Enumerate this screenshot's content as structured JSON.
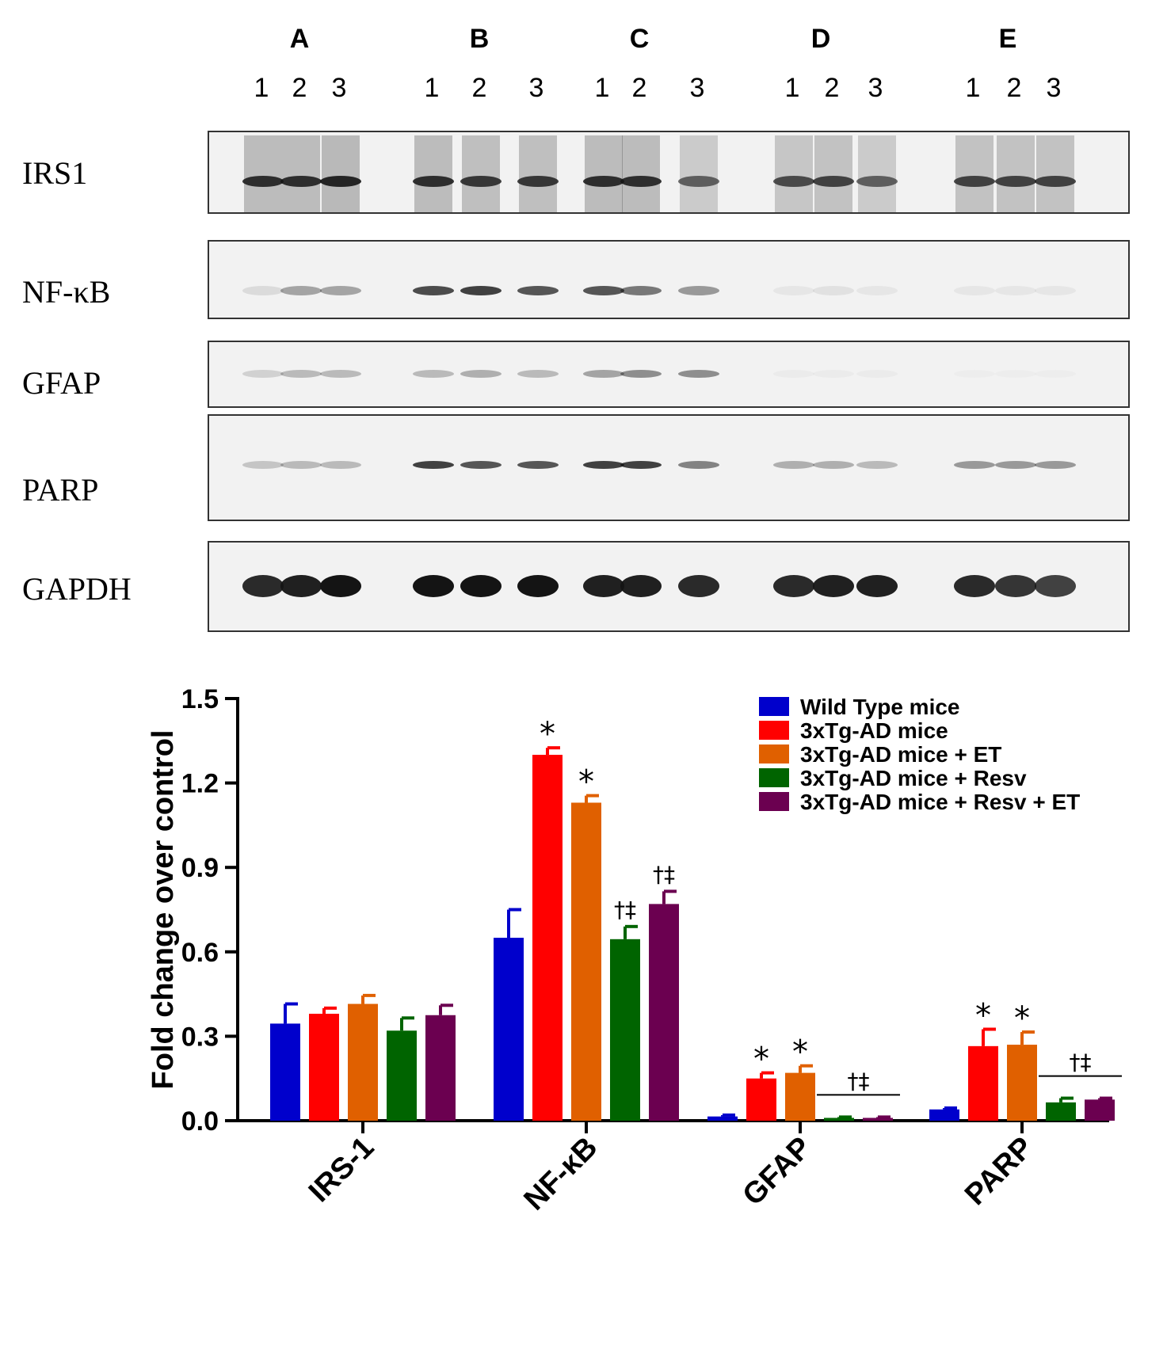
{
  "blot": {
    "groups": [
      "A",
      "B",
      "C",
      "D",
      "E"
    ],
    "lanes": [
      "1",
      "2",
      "3"
    ],
    "proteins": [
      "IRS1",
      "NF-κB",
      "GFAP",
      "PARP",
      "GAPDH"
    ]
  },
  "chart_data": {
    "type": "bar",
    "ylabel": "Fold change over control",
    "xlabel": "",
    "ylim": [
      0,
      1.5
    ],
    "yticks": [
      "0.0",
      "0.3",
      "0.6",
      "0.9",
      "1.2",
      "1.5"
    ],
    "categories": [
      "IRS-1",
      "NF-κB",
      "GFAP",
      "PARP"
    ],
    "legend_position": "top-right",
    "series": [
      {
        "name": "Wild Type mice",
        "color": "#0000cc",
        "values": [
          0.345,
          0.65,
          0.015,
          0.04
        ],
        "errors": [
          0.07,
          0.1,
          0.005,
          0.005
        ]
      },
      {
        "name": "3xTg-AD mice",
        "color": "#ff0000",
        "values": [
          0.38,
          1.3,
          0.15,
          0.265
        ],
        "errors": [
          0.02,
          0.025,
          0.02,
          0.06
        ]
      },
      {
        "name": "3xTg-AD mice + ET",
        "color": "#e06000",
        "values": [
          0.415,
          1.13,
          0.17,
          0.27
        ],
        "errors": [
          0.03,
          0.025,
          0.025,
          0.045
        ]
      },
      {
        "name": "3xTg-AD mice + Resv",
        "color": "#006400",
        "values": [
          0.32,
          0.645,
          0.01,
          0.065
        ],
        "errors": [
          0.045,
          0.045,
          0.003,
          0.015
        ]
      },
      {
        "name": "3xTg-AD mice + Resv + ET",
        "color": "#6b0050",
        "values": [
          0.375,
          0.77,
          0.01,
          0.075
        ],
        "errors": [
          0.035,
          0.045,
          0.003,
          0.005
        ]
      }
    ],
    "annotations": [
      {
        "category": 1,
        "series": 1,
        "text": "*"
      },
      {
        "category": 1,
        "series": 2,
        "text": "*"
      },
      {
        "category": 1,
        "series": 3,
        "text": "†‡"
      },
      {
        "category": 1,
        "series": 4,
        "text": "†‡"
      },
      {
        "category": 2,
        "series": 1,
        "text": "*"
      },
      {
        "category": 2,
        "series": 2,
        "text": "*"
      },
      {
        "category": 2,
        "series": [
          3,
          4
        ],
        "text": "†‡",
        "bracket": true
      },
      {
        "category": 3,
        "series": 1,
        "text": "*"
      },
      {
        "category": 3,
        "series": 2,
        "text": "*"
      },
      {
        "category": 3,
        "series": [
          3,
          4
        ],
        "text": "†‡",
        "bracket": true
      }
    ]
  }
}
